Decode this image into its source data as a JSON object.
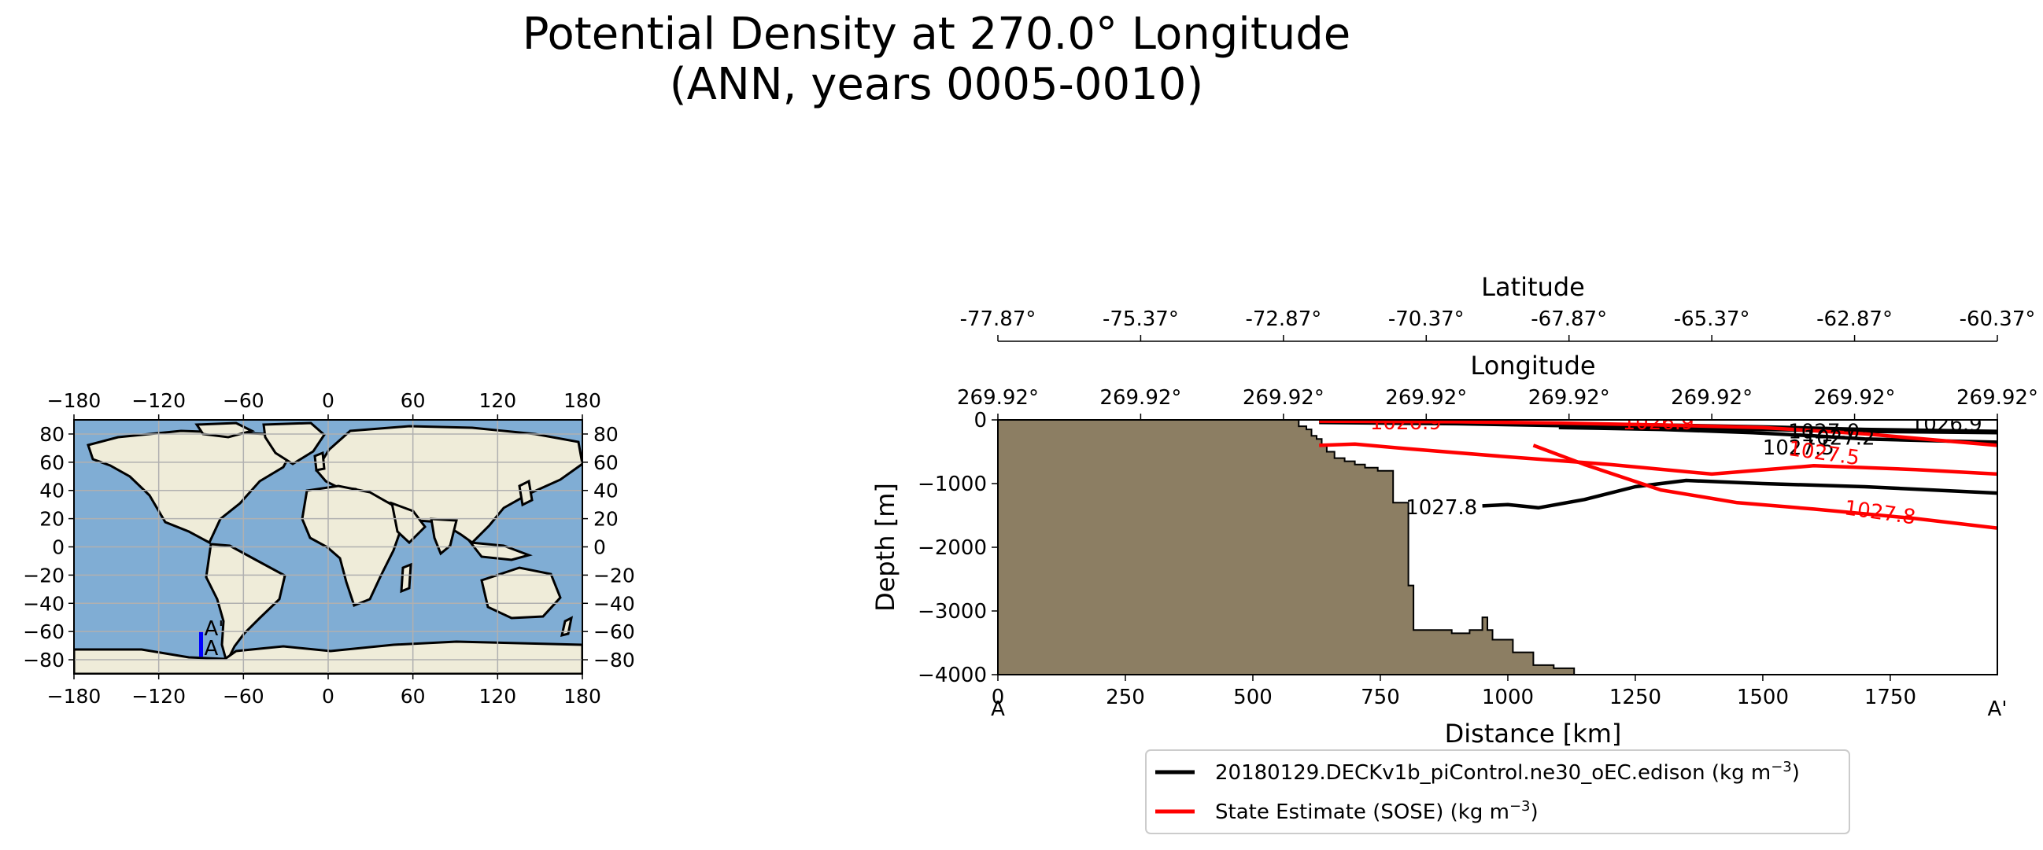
{
  "title": {
    "line1": "Potential Density at 270.0° Longitude",
    "line2": "(ANN, years 0005-0010)"
  },
  "colors": {
    "land_map": "#efecd9",
    "ocean_map": "#80add4",
    "grid": "#b0b0b0",
    "section_line": "#0000ff",
    "bathymetry": "#8c7e63",
    "model": "#000000",
    "obs": "#ff0000"
  },
  "map": {
    "ticks_x": [
      "−180",
      "−120",
      "−60",
      "0",
      "60",
      "120",
      "180"
    ],
    "ticks_y": [
      "80",
      "60",
      "40",
      "20",
      "0",
      "−20",
      "−40",
      "−60",
      "−80"
    ],
    "tick_x_values": [
      -180,
      -120,
      -60,
      0,
      60,
      120,
      180
    ],
    "tick_y_values": [
      80,
      60,
      40,
      20,
      0,
      -20,
      -40,
      -60,
      -80
    ],
    "section_label_start": "A",
    "section_label_end": "A'",
    "section_lon": -90,
    "section_lat": [
      -77.87,
      -60.37
    ]
  },
  "legend": {
    "model_label": "20180129.DECKv1b_piControl.ne30_oEC.edison (kg m",
    "obs_label": "State Estimate (SOSE) (kg m",
    "unit_exponent": "−3",
    "unit_close": ")"
  },
  "chart_data": {
    "type": "line",
    "xlabel": "Distance [km]",
    "ylabel": "Depth [m]",
    "top_axis1_label": "Longitude",
    "top_axis2_label": "Latitude",
    "xlim": [
      0,
      1960
    ],
    "ylim": [
      -4000,
      0
    ],
    "x_ticks": [
      0,
      250,
      500,
      750,
      1000,
      1250,
      1500,
      1750
    ],
    "x_tick_labels": [
      "0",
      "250",
      "500",
      "750",
      "1000",
      "1250",
      "1500",
      "1750"
    ],
    "y_ticks": [
      0,
      -1000,
      -2000,
      -3000,
      -4000
    ],
    "y_tick_labels": [
      "0",
      "−1000",
      "−2000",
      "−3000",
      "−4000"
    ],
    "section_start_label": "A",
    "section_end_label": "A'",
    "longitude_tick_labels": [
      "269.92°",
      "269.92°",
      "269.92°",
      "269.92°",
      "269.92°",
      "269.92°",
      "269.92°",
      "269.92°"
    ],
    "latitude_tick_labels": [
      "-77.87°",
      "-75.37°",
      "-72.87°",
      "-70.37°",
      "-67.87°",
      "-65.37°",
      "-62.87°",
      "-60.37°"
    ],
    "bathymetry": {
      "x": [
        0,
        590,
        590,
        605,
        605,
        615,
        615,
        625,
        625,
        635,
        635,
        645,
        645,
        660,
        660,
        680,
        680,
        700,
        700,
        720,
        720,
        745,
        745,
        775,
        775,
        805,
        805,
        815,
        815,
        850,
        850,
        890,
        890,
        925,
        925,
        950,
        950,
        960,
        960,
        970,
        970,
        1010,
        1010,
        1050,
        1050,
        1090,
        1090,
        1130,
        1130,
        0
      ],
      "depth": [
        0,
        0,
        -100,
        -100,
        -150,
        -150,
        -250,
        -250,
        -300,
        -300,
        -400,
        -400,
        -500,
        -500,
        -600,
        -600,
        -650,
        -650,
        -700,
        -700,
        -750,
        -750,
        -800,
        -800,
        -1300,
        -1300,
        -2600,
        -2600,
        -3300,
        -3300,
        -3300,
        -3300,
        -3350,
        -3350,
        -3300,
        -3300,
        -3100,
        -3100,
        -3300,
        -3300,
        -3450,
        -3450,
        -3650,
        -3650,
        -3850,
        -3850,
        -3900,
        -3900,
        -4000,
        -4000
      ]
    },
    "series": [
      {
        "values_label": "1026.9",
        "x": [
          630,
          900,
          1100,
          1300,
          1500,
          1700,
          1960
        ],
        "depth": [
          -40,
          -60,
          -90,
          -120,
          -150,
          -180,
          -200
        ]
      },
      {
        "values_label": "1027.2",
        "x": [
          630,
          900,
          1100,
          1300,
          1500,
          1700,
          1960
        ],
        "depth": [
          -20,
          -40,
          -60,
          -80,
          -110,
          -150,
          -180
        ]
      },
      {
        "values_label": "1027.5",
        "x": [
          1100,
          1300,
          1480,
          1600,
          1700,
          1850,
          1960
        ],
        "depth": [
          -120,
          -150,
          -200,
          -250,
          -300,
          -330,
          -350
        ]
      },
      {
        "values_label": "1027.8",
        "x": [
          950,
          1000,
          1060,
          1150,
          1250,
          1350,
          1500,
          1700,
          1960
        ],
        "depth": [
          -1350,
          -1330,
          -1380,
          -1250,
          -1050,
          -950,
          -1000,
          -1050,
          -1150
        ]
      },
      {
        "values_label": "1026.9",
        "x": [
          630,
          900,
          1100,
          1300,
          1500,
          1700,
          1960
        ],
        "depth": [
          -20,
          -30,
          -50,
          -80,
          -120,
          -220,
          -400
        ]
      },
      {
        "values_label": "1027.5",
        "x": [
          630,
          700,
          800,
          1000,
          1200,
          1400,
          1600,
          1800,
          1960
        ],
        "depth": [
          -400,
          -380,
          -450,
          -580,
          -700,
          -850,
          -720,
          -780,
          -850
        ]
      },
      {
        "values_label": "1027.8",
        "x": [
          1050,
          1150,
          1300,
          1450,
          1600,
          1800,
          1960
        ],
        "depth": [
          -400,
          -700,
          -1100,
          -1300,
          -1400,
          -1550,
          -1700
        ]
      }
    ],
    "contour_labels": [
      {
        "text": "1026.9",
        "series": "model",
        "x": 1860,
        "depth": -60
      },
      {
        "text": "1027.0",
        "series": "model",
        "x": 1620,
        "depth": -180
      },
      {
        "text": "1027.2",
        "series": "model",
        "x": 1650,
        "depth": -280
      },
      {
        "text": "1027.5",
        "series": "model",
        "x": 1570,
        "depth": -430
      },
      {
        "text": "1027.8",
        "series": "model",
        "x": 870,
        "depth": -1370
      },
      {
        "text": "1026.9",
        "series": "obs",
        "x": 800,
        "depth": -40
      },
      {
        "text": "1026.9",
        "series": "obs",
        "x": 1295,
        "depth": -40
      },
      {
        "text": "1027.5",
        "series": "obs",
        "x": 1620,
        "depth": -520
      },
      {
        "text": "1027.8",
        "series": "obs",
        "x": 1730,
        "depth": -1450
      }
    ]
  }
}
